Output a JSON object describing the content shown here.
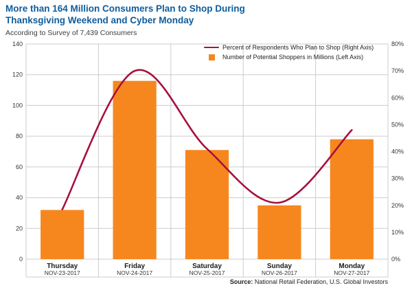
{
  "header": {
    "title_line1": "More than 164 Million Consumers Plan to Shop During",
    "title_line2": "Thanksgiving Weekend and Cyber Monday",
    "subtitle": "According to Survey of 7,439 Consumers"
  },
  "legend": {
    "line_label": "Percent of Respondents Who Plan to Shop (Right Axis)",
    "bar_label": "Number of Potential Shoppers in Millions (Left Axis)"
  },
  "source": {
    "label": "Source:",
    "text": " National Retail Federation, U.S. Global Investors"
  },
  "colors": {
    "title_blue": "#0E5C9D",
    "bar_orange": "#F6871F",
    "line_crimson": "#A6113C",
    "grid_gray": "#CCCCCC",
    "axis_text": "#333333"
  },
  "chart_data": {
    "type": "bar+line",
    "title": "More than 164 Million Consumers Plan to Shop During Thanksgiving Weekend and Cyber Monday",
    "subtitle": "According to Survey of 7,439 Consumers",
    "categories": [
      "Thursday",
      "Friday",
      "Saturday",
      "Sunday",
      "Monday"
    ],
    "dates": [
      "NOV-23-2017",
      "NOV-24-2017",
      "NOV-25-2017",
      "NOV-26-2017",
      "NOV-27-2017"
    ],
    "series": [
      {
        "name": "Number of Potential Shoppers in Millions",
        "type": "bar",
        "axis": "left",
        "values": [
          32,
          116,
          71,
          35,
          78
        ]
      },
      {
        "name": "Percent of Respondents Who Plan to Shop",
        "type": "line",
        "axis": "right",
        "values": [
          18.5,
          70,
          41,
          21,
          48
        ]
      }
    ],
    "left_axis": {
      "min": 0,
      "max": 140,
      "step": 20,
      "tick_labels": [
        "0",
        "20",
        "40",
        "60",
        "80",
        "100",
        "120",
        "140"
      ]
    },
    "right_axis": {
      "min": 0,
      "max": 80,
      "step": 10,
      "tick_labels": [
        "0%",
        "10%",
        "20%",
        "30%",
        "40%",
        "50%",
        "60%",
        "70%",
        "80%"
      ]
    },
    "grid": true,
    "legend_position": "top-right-inside"
  }
}
